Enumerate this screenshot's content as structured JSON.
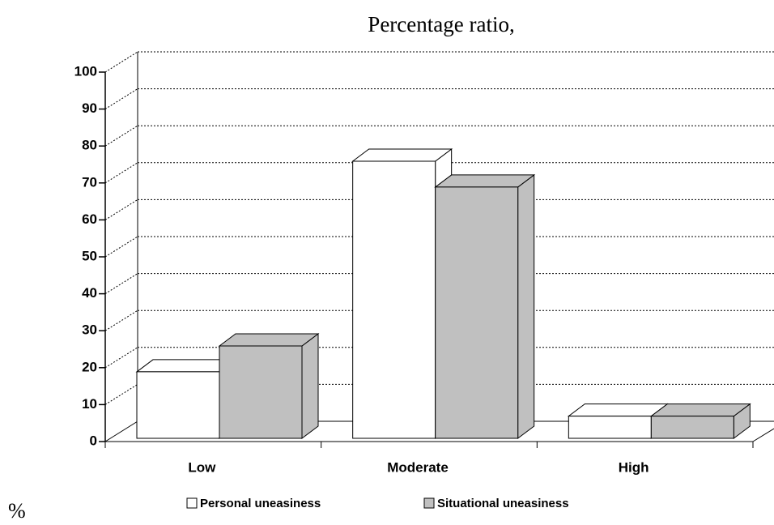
{
  "chart_data": {
    "type": "bar3d",
    "title": "Percentage ratio,",
    "y_label": "%",
    "categories": [
      "Low",
      "Moderate",
      "High"
    ],
    "series": [
      {
        "name": "Personal uneasiness",
        "color": "#ffffff",
        "values": [
          18,
          75,
          6
        ]
      },
      {
        "name": "Situational uneasiness",
        "color": "#c0c0c0",
        "values": [
          25,
          68,
          6
        ]
      }
    ],
    "ylim": [
      0,
      100
    ],
    "yticks": [
      0,
      10,
      20,
      30,
      40,
      50,
      60,
      70,
      80,
      90,
      100
    ],
    "grid": true,
    "legend": "bottom"
  }
}
